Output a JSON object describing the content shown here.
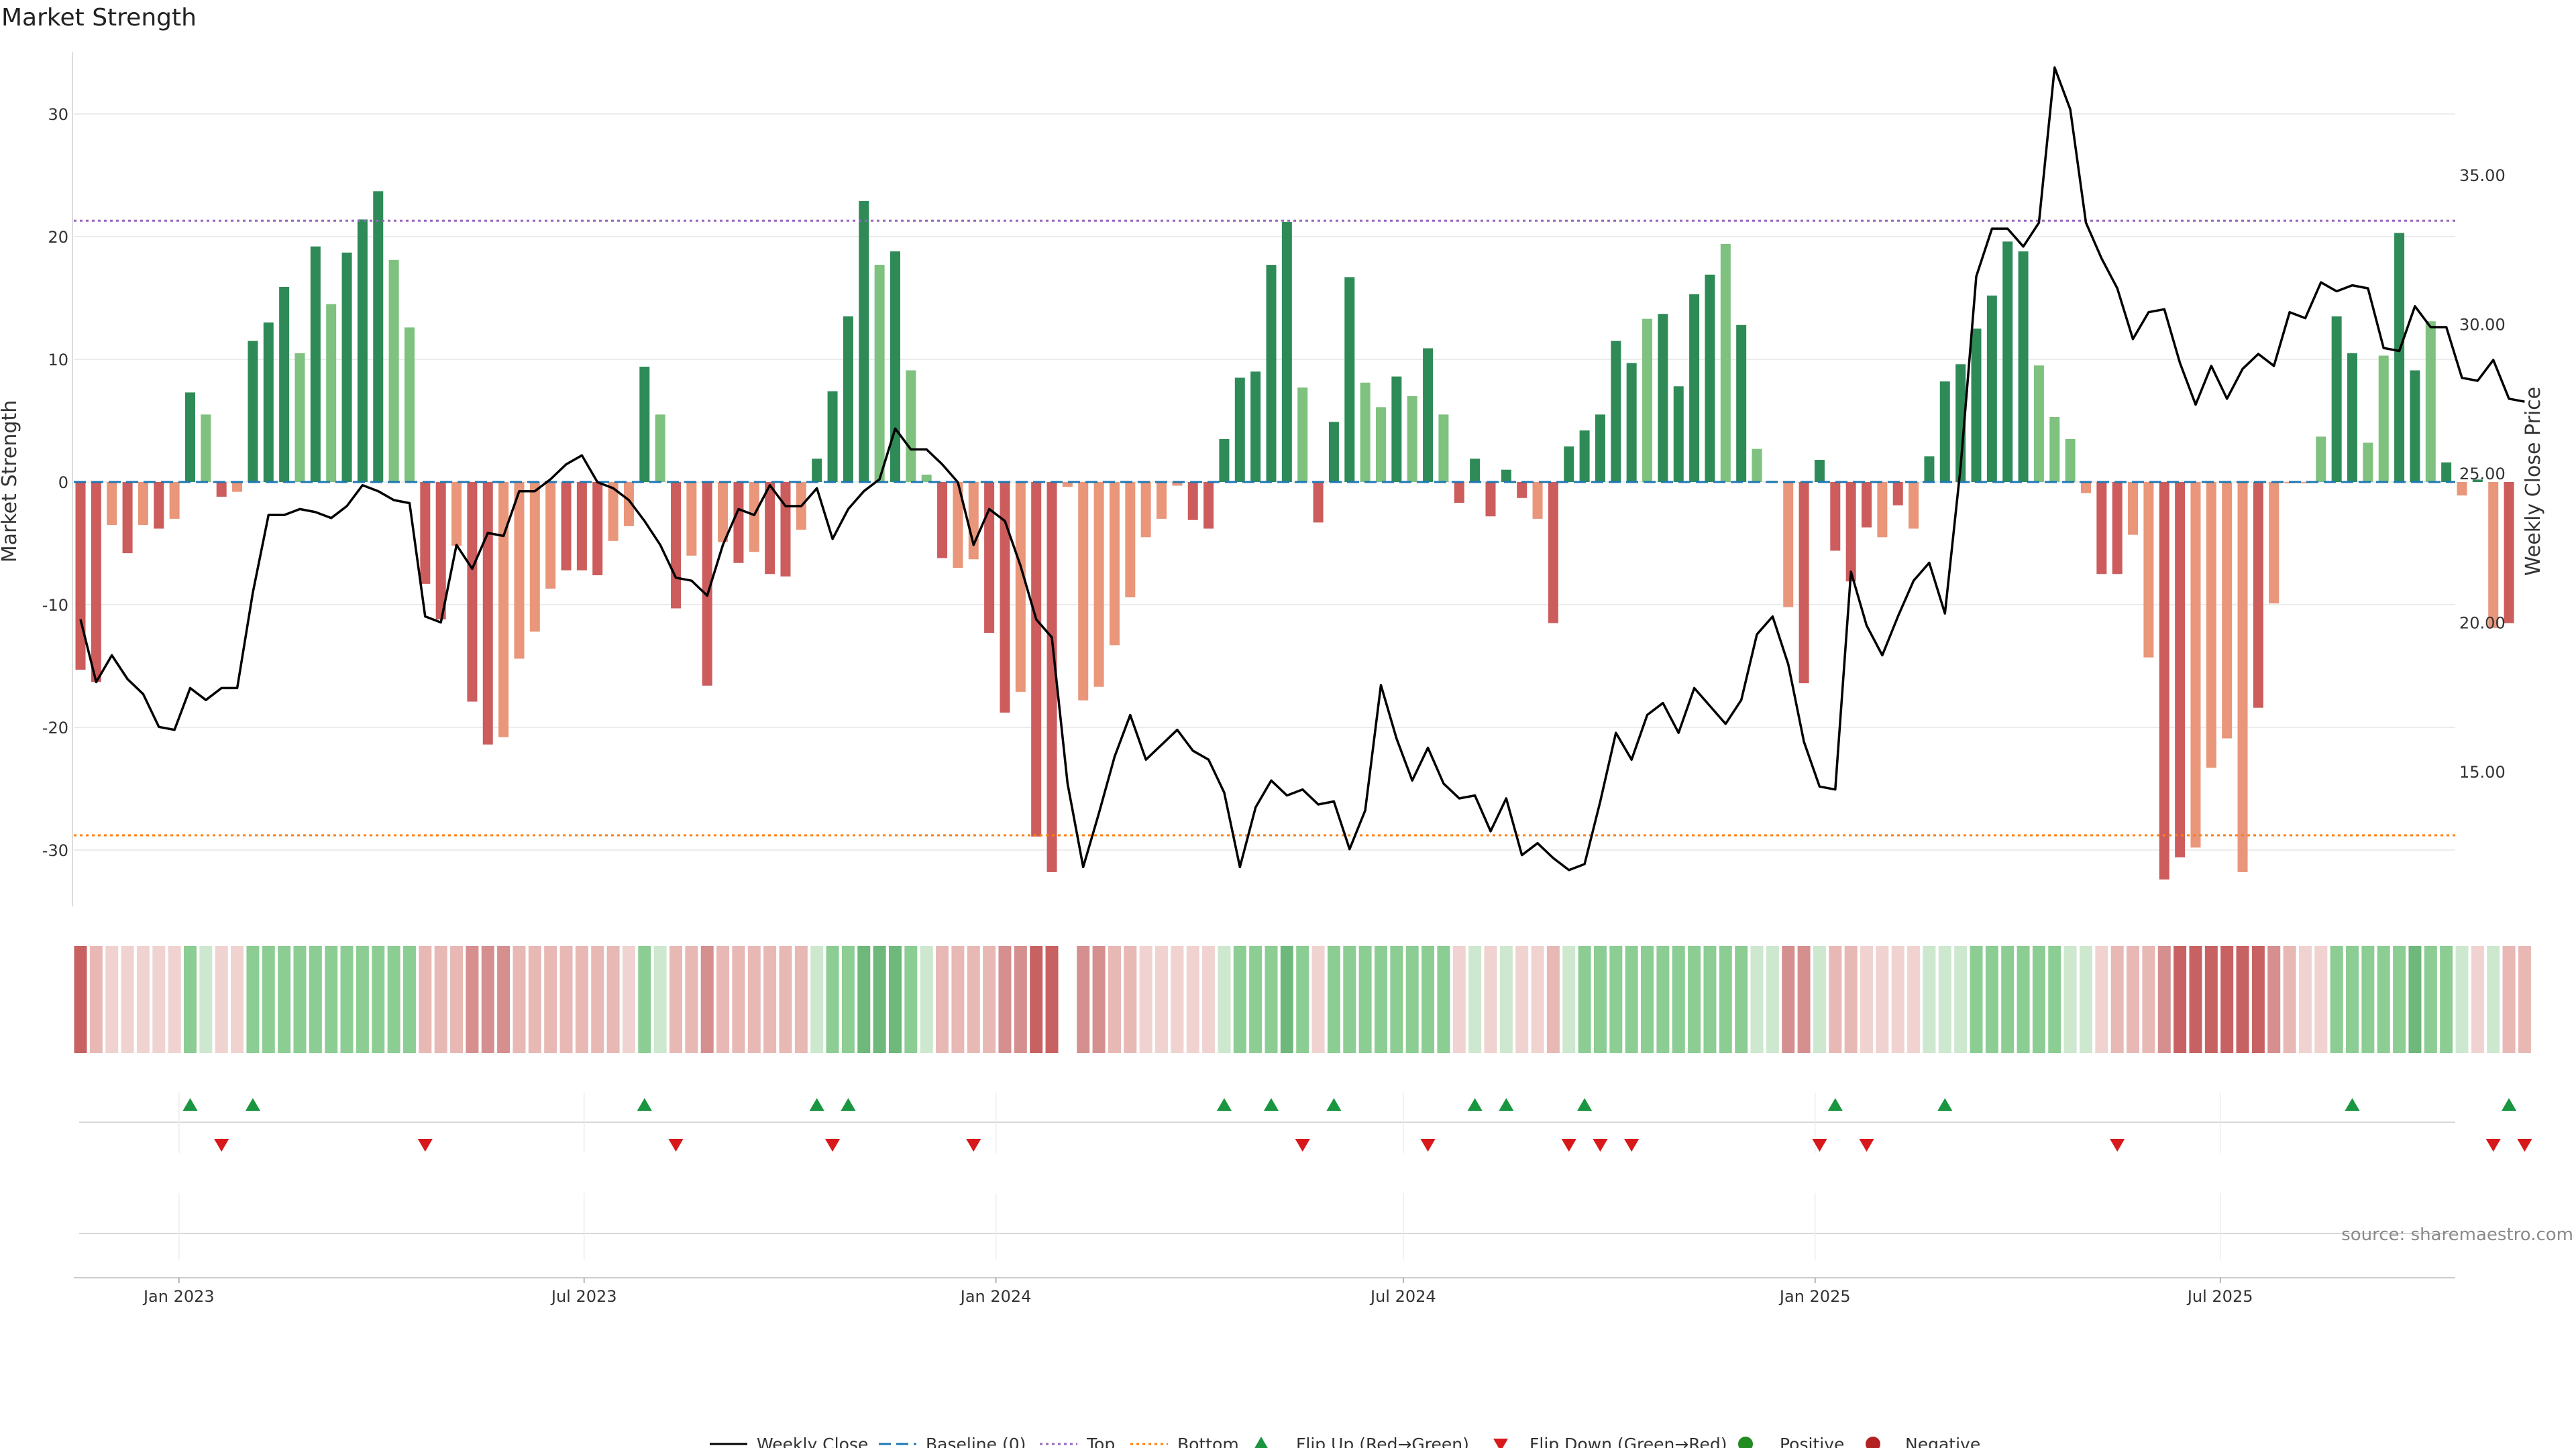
{
  "title": "Market Strength",
  "colors": {
    "pos_strong": "#2e8b57",
    "pos_light": "#7fc17f",
    "neg_strong": "#cd5c5c",
    "neg_light": "#e9967a",
    "line": "#000000",
    "baseline": "#1f77b4",
    "top": "#9467bd",
    "bottom": "#ff7f0e",
    "flip_up": "#1a9641",
    "flip_down": "#d7191c",
    "positive": "#228b22",
    "negative": "#b22222",
    "grid": "#e6e6e6"
  },
  "source_note": "source: sharemaestro.com",
  "legend": {
    "weekly_close": "Weekly Close",
    "baseline": "Baseline (0)",
    "top": "Top",
    "bottom": "Bottom",
    "flip_up": "Flip Up (Red→Green)",
    "flip_down": "Flip Down (Green→Red)",
    "positive": "Positive",
    "negative": "Negative"
  },
  "chart_data": {
    "type": "bar",
    "x_start": "2022-11-18",
    "x_step_days": 7,
    "xlim": [
      "2022-11-15",
      "2025-10-14"
    ],
    "x_ticks": [
      {
        "date": "2023-01-01",
        "label": "Jan 2023"
      },
      {
        "date": "2023-07-01",
        "label": "Jul 2023"
      },
      {
        "date": "2024-01-01",
        "label": "Jan 2024"
      },
      {
        "date": "2024-07-01",
        "label": "Jul 2024"
      },
      {
        "date": "2025-01-01",
        "label": "Jan 2025"
      },
      {
        "date": "2025-07-01",
        "label": "Jul 2025"
      }
    ],
    "ylabel": "Market Strength",
    "y2label": "Weekly Close Price",
    "ylim": [
      -35,
      35
    ],
    "y_ticks": [
      -30,
      -20,
      -10,
      0,
      10,
      20,
      30
    ],
    "y2lim": [
      10.5,
      39.3
    ],
    "y2_ticks": [
      15,
      20,
      25,
      30,
      35
    ],
    "y2_tick_labels": [
      "15.00",
      "20.00",
      "25.00",
      "30.00",
      "35.00"
    ],
    "top_level": 21.3,
    "bottom_level": -28.8,
    "strength": [
      -15.3,
      -16.3,
      -3.5,
      -5.8,
      -3.5,
      -3.8,
      -3.0,
      7.3,
      5.5,
      -1.2,
      -0.8,
      11.5,
      13.0,
      15.9,
      10.5,
      19.2,
      14.5,
      18.7,
      21.4,
      23.7,
      18.1,
      12.6,
      -8.3,
      -11.2,
      -5.2,
      -17.9,
      -21.4,
      -20.8,
      -14.4,
      -12.2,
      -8.7,
      -7.2,
      -7.2,
      -7.6,
      -4.8,
      -3.6,
      9.4,
      5.5,
      -10.3,
      -6.0,
      -16.6,
      -4.9,
      -6.6,
      -5.7,
      -7.5,
      -7.7,
      -3.9,
      1.9,
      7.4,
      13.5,
      22.9,
      17.7,
      18.8,
      9.1,
      0.6,
      -6.2,
      -7.0,
      -6.3,
      -12.3,
      -18.8,
      -17.1,
      -28.9,
      -31.8,
      -0.4,
      -17.8,
      -16.7,
      -13.3,
      -9.4,
      -4.5,
      -3.0,
      -0.3,
      -3.1,
      -3.8,
      3.5,
      8.5,
      9.0,
      17.7,
      21.2,
      7.7,
      -3.3,
      4.9,
      16.7,
      8.1,
      6.1,
      8.6,
      7.0,
      10.9,
      5.5,
      -1.7,
      1.9,
      -2.8,
      1.0,
      -1.3,
      -3.0,
      -11.5,
      2.9,
      4.2,
      5.5,
      11.5,
      9.7,
      13.3,
      13.7,
      7.8,
      15.3,
      16.9,
      19.4,
      12.8,
      2.7,
      0.1,
      -10.2,
      -16.4,
      1.8,
      -5.6,
      -8.1,
      -3.7,
      -4.5,
      -1.9,
      -3.8,
      2.1,
      8.2,
      9.6,
      12.5,
      15.2,
      19.6,
      18.8,
      9.5,
      5.3,
      3.5,
      -0.9,
      -7.5,
      -7.5,
      -4.3,
      -14.3,
      -32.4,
      -30.6,
      -29.8,
      -23.3,
      -20.9,
      -31.8,
      -18.4,
      -9.9,
      -0.1,
      -0.1,
      3.7,
      13.5,
      10.5,
      3.2,
      10.3,
      20.3,
      9.1,
      13.1,
      1.6,
      -1.1,
      0.2,
      -11.9,
      -11.5
    ],
    "strength_shade": [
      "s",
      "s",
      "l",
      "s",
      "l",
      "s",
      "l",
      "s",
      "l",
      "s",
      "l",
      "s",
      "s",
      "s",
      "l",
      "s",
      "l",
      "s",
      "s",
      "s",
      "l",
      "l",
      "s",
      "s",
      "l",
      "s",
      "s",
      "l",
      "l",
      "l",
      "l",
      "s",
      "s",
      "s",
      "l",
      "l",
      "s",
      "l",
      "s",
      "l",
      "s",
      "l",
      "s",
      "l",
      "s",
      "s",
      "l",
      "s",
      "s",
      "s",
      "s",
      "l",
      "s",
      "l",
      "l",
      "s",
      "l",
      "l",
      "s",
      "s",
      "l",
      "s",
      "s",
      "l",
      "l",
      "l",
      "l",
      "l",
      "l",
      "l",
      "l",
      "s",
      "s",
      "s",
      "s",
      "s",
      "s",
      "s",
      "l",
      "s",
      "s",
      "s",
      "l",
      "l",
      "s",
      "l",
      "s",
      "l",
      "s",
      "s",
      "s",
      "s",
      "s",
      "l",
      "s",
      "s",
      "s",
      "s",
      "s",
      "s",
      "l",
      "s",
      "s",
      "s",
      "s",
      "l",
      "s",
      "l",
      "l",
      "l",
      "s",
      "s",
      "s",
      "s",
      "s",
      "l",
      "s",
      "l",
      "s",
      "s",
      "s",
      "s",
      "s",
      "s",
      "s",
      "l",
      "l",
      "l",
      "l",
      "s",
      "s",
      "l",
      "l",
      "s",
      "s",
      "l",
      "l",
      "l",
      "l",
      "s",
      "l",
      "l",
      "l",
      "l",
      "s",
      "s",
      "l",
      "l",
      "s",
      "s",
      "l",
      "s",
      "l",
      "s",
      "l",
      "s",
      "s",
      "s"
    ],
    "close": [
      20.1,
      18.0,
      18.9,
      18.1,
      17.6,
      16.5,
      16.4,
      17.8,
      17.4,
      17.8,
      17.8,
      21.0,
      23.6,
      23.6,
      23.8,
      23.7,
      23.5,
      23.9,
      24.6,
      24.4,
      24.1,
      24.0,
      20.2,
      20.0,
      22.6,
      21.8,
      23.0,
      22.9,
      24.4,
      24.4,
      24.8,
      25.3,
      25.6,
      24.7,
      24.5,
      24.1,
      23.4,
      22.6,
      21.5,
      21.4,
      20.9,
      22.6,
      23.8,
      23.6,
      24.6,
      23.9,
      23.9,
      24.5,
      22.8,
      23.8,
      24.4,
      24.8,
      26.5,
      25.8,
      25.8,
      25.3,
      24.7,
      22.6,
      23.8,
      23.4,
      21.9,
      20.1,
      19.5,
      14.6,
      11.8,
      13.6,
      15.5,
      16.9,
      15.4,
      15.9,
      16.4,
      15.7,
      15.4,
      14.3,
      11.8,
      13.8,
      14.7,
      14.2,
      14.4,
      13.9,
      14.0,
      12.4,
      13.7,
      17.9,
      16.1,
      14.7,
      15.8,
      14.6,
      14.1,
      14.2,
      13.0,
      14.1,
      12.2,
      12.6,
      12.1,
      11.7,
      11.9,
      14.0,
      16.3,
      15.4,
      16.9,
      17.3,
      16.3,
      17.8,
      17.2,
      16.6,
      17.4,
      19.6,
      20.2,
      18.6,
      16.0,
      14.5,
      14.4,
      21.7,
      19.9,
      18.9,
      20.2,
      21.4,
      22.0,
      20.3,
      25.2,
      31.6,
      33.2,
      33.2,
      32.6,
      33.4,
      38.6,
      37.2,
      33.4,
      32.2,
      31.2,
      29.5,
      30.4,
      30.5,
      28.7,
      27.3,
      28.6,
      27.5,
      28.5,
      29.0,
      28.6,
      30.4,
      30.2,
      31.4,
      31.1,
      31.3,
      31.2,
      29.2,
      29.1,
      30.6,
      29.9,
      29.9,
      28.2,
      28.1,
      28.8,
      27.5,
      27.4
    ],
    "background_band": [
      "ns",
      "nl",
      "nx",
      "nx",
      "nx",
      "nx",
      "nx",
      "pl",
      "px",
      "nx",
      "nx",
      "pl",
      "pl",
      "pl",
      "pl",
      "pl",
      "pl",
      "pl",
      "pl",
      "pl",
      "pl",
      "pl",
      "nl",
      "nl",
      "nl",
      "nm",
      "nm",
      "nm",
      "nl",
      "nl",
      "nl",
      "nl",
      "nl",
      "nl",
      "nl",
      "nx",
      "pl",
      "px",
      "nl",
      "nl",
      "nm",
      "nl",
      "nl",
      "nl",
      "nl",
      "nl",
      "nl",
      "px",
      "pl",
      "pl",
      "ps",
      "ps",
      "ps",
      "pl",
      "px",
      "nl",
      "nl",
      "nl",
      "nl",
      "nm",
      "nm",
      "ns",
      "ns",
      "gap",
      "nm",
      "nm",
      "nl",
      "nl",
      "nx",
      "nx",
      "nx",
      "nx",
      "nx",
      "px",
      "pl",
      "pl",
      "pl",
      "ps",
      "pl",
      "nx",
      "pl",
      "pl",
      "pl",
      "pl",
      "pl",
      "pl",
      "pl",
      "pl",
      "nx",
      "px",
      "nx",
      "px",
      "nx",
      "nx",
      "nl",
      "px",
      "pl",
      "pl",
      "pl",
      "pl",
      "pl",
      "pl",
      "pl",
      "pl",
      "pl",
      "pl",
      "pl",
      "px",
      "px",
      "nm",
      "nm",
      "px",
      "nl",
      "nl",
      "nx",
      "nx",
      "nx",
      "nx",
      "px",
      "px",
      "px",
      "pl",
      "pl",
      "pl",
      "pl",
      "pl",
      "pl",
      "px",
      "px",
      "nx",
      "nl",
      "nl",
      "nl",
      "nm",
      "ns",
      "ns",
      "ns",
      "ns",
      "ns",
      "ns",
      "nm",
      "nl",
      "nx",
      "nx",
      "pl",
      "pl",
      "pl",
      "pl",
      "pl",
      "ps",
      "pl",
      "pl",
      "px",
      "nx",
      "px",
      "nl",
      "nl"
    ],
    "flip_up": [
      7,
      11,
      36,
      47,
      49,
      73,
      76,
      80,
      89,
      91,
      96,
      112,
      119,
      145,
      155
    ],
    "flip_down": [
      9,
      22,
      38,
      48,
      57,
      78,
      86,
      95,
      97,
      99,
      111,
      114,
      130,
      154,
      156
    ],
    "marker_levels": {
      "flip_up": 1,
      "flip_down": 0
    },
    "has_positive": true,
    "has_negative": true
  }
}
